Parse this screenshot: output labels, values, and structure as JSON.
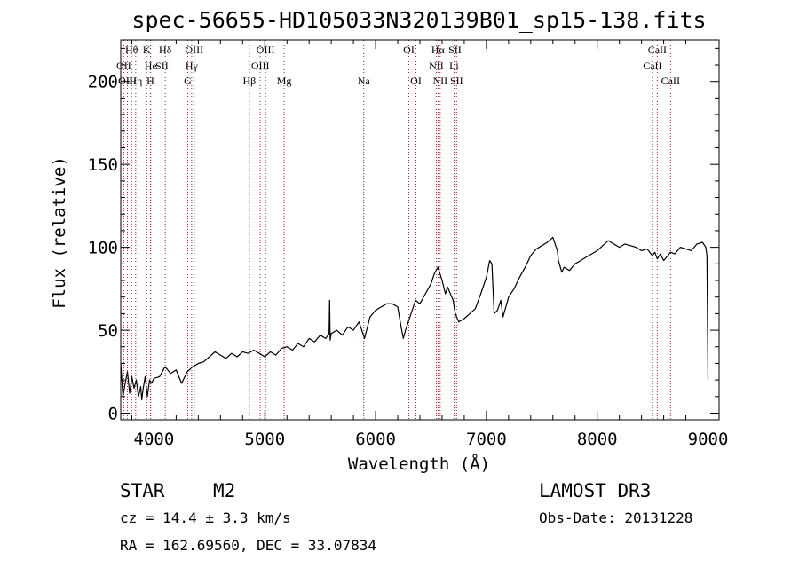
{
  "chart_data": {
    "type": "line",
    "title": "spec-56655-HD105033N320139B01_sp15-138.fits",
    "xlabel": "Wavelength (Å)",
    "ylabel": "Flux (relative)",
    "xlim": [
      3700,
      9100
    ],
    "ylim": [
      -4,
      225
    ],
    "xticks": [
      4000,
      5000,
      6000,
      7000,
      8000,
      9000
    ],
    "yticks": [
      0,
      50,
      100,
      150,
      200
    ],
    "xtick_labels": [
      "4000",
      "5000",
      "6000",
      "7000",
      "8000",
      "9000"
    ],
    "ytick_labels": [
      "0",
      "50",
      "100",
      "150",
      "200"
    ],
    "series": [
      {
        "name": "spectrum",
        "color": "#000000",
        "x": [
          3700,
          3720,
          3740,
          3760,
          3780,
          3800,
          3820,
          3840,
          3860,
          3880,
          3890,
          3900,
          3920,
          3940,
          3960,
          3980,
          4000,
          4050,
          4100,
          4150,
          4200,
          4250,
          4300,
          4350,
          4400,
          4450,
          4500,
          4550,
          4600,
          4650,
          4700,
          4750,
          4800,
          4850,
          4900,
          4950,
          5000,
          5050,
          5100,
          5150,
          5200,
          5250,
          5300,
          5350,
          5400,
          5450,
          5500,
          5550,
          5580,
          5585,
          5590,
          5600,
          5650,
          5700,
          5750,
          5800,
          5850,
          5900,
          5950,
          6000,
          6050,
          6100,
          6150,
          6200,
          6230,
          6250,
          6270,
          6300,
          6330,
          6360,
          6400,
          6450,
          6500,
          6530,
          6563,
          6600,
          6630,
          6650,
          6700,
          6720,
          6750,
          6800,
          6850,
          6900,
          6950,
          7000,
          7030,
          7050,
          7070,
          7100,
          7130,
          7150,
          7200,
          7250,
          7300,
          7350,
          7400,
          7450,
          7500,
          7550,
          7600,
          7640,
          7650,
          7680,
          7700,
          7750,
          7800,
          7850,
          7900,
          7950,
          8000,
          8050,
          8100,
          8150,
          8200,
          8250,
          8300,
          8350,
          8400,
          8450,
          8498,
          8520,
          8542,
          8570,
          8600,
          8662,
          8700,
          8750,
          8800,
          8850,
          8900,
          8950,
          8980,
          8990,
          9000
        ],
        "y": [
          30,
          10,
          18,
          25,
          12,
          22,
          15,
          20,
          10,
          16,
          8,
          14,
          22,
          10,
          20,
          18,
          21,
          22,
          28,
          24,
          26,
          18,
          25,
          28,
          30,
          31,
          34,
          37,
          35,
          33,
          36,
          34,
          37,
          36,
          38,
          36,
          34,
          37,
          35,
          39,
          40,
          38,
          42,
          40,
          45,
          43,
          47,
          45,
          48,
          68,
          44,
          48,
          50,
          47,
          52,
          50,
          55,
          45,
          58,
          62,
          64,
          66,
          66,
          64,
          52,
          45,
          50,
          56,
          62,
          68,
          66,
          72,
          78,
          84,
          88,
          80,
          72,
          76,
          68,
          60,
          55,
          57,
          60,
          63,
          72,
          82,
          92,
          90,
          60,
          62,
          68,
          58,
          70,
          75,
          82,
          88,
          95,
          99,
          101,
          103,
          106,
          98,
          92,
          85,
          88,
          86,
          90,
          92,
          94,
          96,
          98,
          101,
          104,
          102,
          100,
          102,
          101,
          100,
          98,
          99,
          95,
          97,
          93,
          96,
          92,
          97,
          96,
          100,
          99,
          98,
          102,
          103,
          100,
          95,
          20
        ]
      }
    ],
    "emission_lines": [
      {
        "label": "Hθ",
        "wavelength": 3798
      },
      {
        "label": "K",
        "wavelength": 3934
      },
      {
        "label": "Hδ",
        "wavelength": 4102
      },
      {
        "label": "OIII",
        "wavelength": 4363
      },
      {
        "label": "OIII",
        "wavelength": 5007
      },
      {
        "label": "OI",
        "wavelength": 6300
      },
      {
        "label": "Hα",
        "wavelength": 6563
      },
      {
        "label": "SII",
        "wavelength": 6716
      },
      {
        "label": "CaII",
        "wavelength": 8542
      },
      {
        "label": "OII",
        "wavelength": 3727
      },
      {
        "label": "He",
        "wavelength": 3970
      },
      {
        "label": "SII",
        "wavelength": 4072
      },
      {
        "label": "Hγ",
        "wavelength": 4340
      },
      {
        "label": "OIII",
        "wavelength": 4959
      },
      {
        "label": "NII",
        "wavelength": 6548
      },
      {
        "label": "Li",
        "wavelength": 6708
      },
      {
        "label": "CaII",
        "wavelength": 8498
      },
      {
        "label": "OIII",
        "wavelength": 3760
      },
      {
        "label": "Hη",
        "wavelength": 3835
      },
      {
        "label": "H",
        "wavelength": 3968
      },
      {
        "label": "G",
        "wavelength": 4305
      },
      {
        "label": "Hβ",
        "wavelength": 4861
      },
      {
        "label": "Mg",
        "wavelength": 5175
      },
      {
        "label": "Na",
        "wavelength": 5893
      },
      {
        "label": "OI",
        "wavelength": 6364
      },
      {
        "label": "NII",
        "wavelength": 6583
      },
      {
        "label": "SII",
        "wavelength": 6731
      },
      {
        "label": "CaII",
        "wavelength": 8662
      }
    ],
    "colors": {
      "axes": "#000000",
      "spectrum": "#000000",
      "line_markers": "#b22222"
    }
  },
  "info": {
    "object_class": "STAR",
    "subclass": "M2",
    "survey": "LAMOST DR3",
    "redshift": "cz = 14.4 ± 3.3 km/s",
    "obs_date": "Obs-Date: 20131228",
    "coords": "RA = 162.69560, DEC =  33.07834"
  }
}
